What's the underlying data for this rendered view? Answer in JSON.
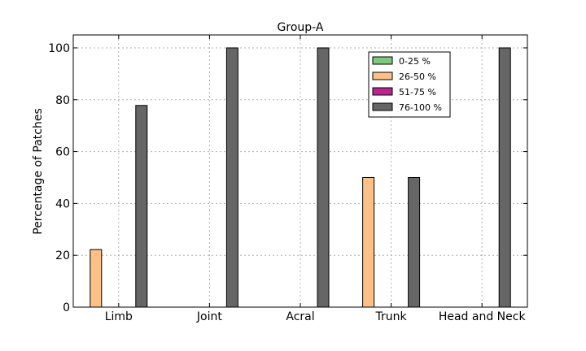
{
  "chart_data": {
    "type": "bar",
    "title": "Group-A",
    "xlabel": "",
    "ylabel": "Percentage of Patches",
    "categories": [
      "Limb",
      "Joint",
      "Acral",
      "Trunk",
      "Head and Neck"
    ],
    "series": [
      {
        "name": "0-25 %",
        "color": "#7fc97f",
        "values": [
          0,
          0,
          0,
          0,
          0
        ]
      },
      {
        "name": "26-50 %",
        "color": "#fdc086",
        "values": [
          22.2,
          0,
          0,
          50,
          0
        ]
      },
      {
        "name": "51-75 %",
        "color": "#b8278f",
        "values": [
          0,
          0,
          0,
          0,
          0
        ]
      },
      {
        "name": "76-100 %",
        "color": "#666666",
        "values": [
          77.8,
          100,
          100,
          50,
          100
        ]
      }
    ],
    "ylim": [
      0,
      105
    ],
    "yticks": [
      0,
      20,
      40,
      60,
      80,
      100
    ],
    "grid": true,
    "legend_position": "top-right"
  }
}
